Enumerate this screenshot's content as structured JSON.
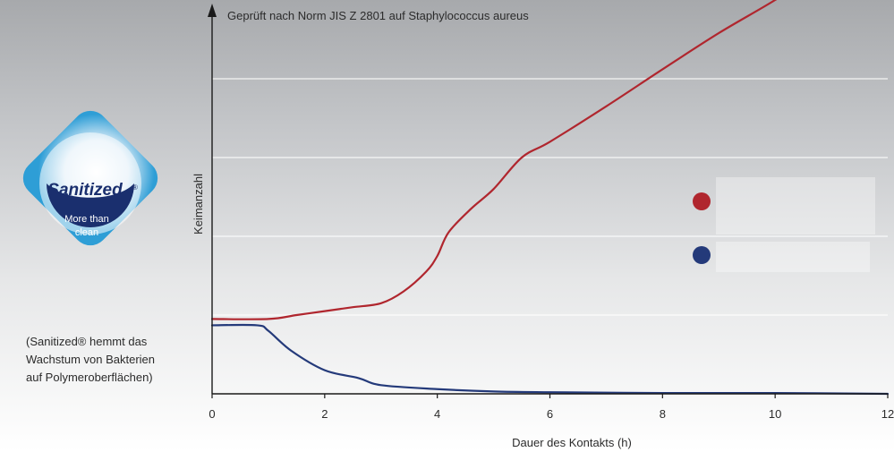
{
  "logo": {
    "name": "Sanitized",
    "mark": "®",
    "tagline_line1": "More than",
    "tagline_line2": "clean"
  },
  "caption": {
    "line1": "(Sanitized® hemmt das",
    "line2": "Wachstum von Bakterien",
    "line3": "auf Polymeroberflächen)"
  },
  "chart_data": {
    "type": "line",
    "title": "Geprüft nach Norm JIS Z 2801 auf Staphylococcus aureus",
    "xlabel": "Dauer des Kontakts (h)",
    "ylabel": "Keimanzahl",
    "xlim": [
      0,
      12
    ],
    "ylim": [
      0,
      5
    ],
    "x_ticks": [
      0,
      2,
      4,
      6,
      8,
      10,
      12
    ],
    "y_gridlines": [
      1,
      2,
      3,
      4
    ],
    "series": [
      {
        "color": "#b0262e",
        "points": [
          [
            0,
            0.95
          ],
          [
            1,
            0.95
          ],
          [
            1.5,
            1.0
          ],
          [
            2,
            1.05
          ],
          [
            2.5,
            1.1
          ],
          [
            3,
            1.15
          ],
          [
            3.4,
            1.3
          ],
          [
            3.8,
            1.55
          ],
          [
            4,
            1.75
          ],
          [
            4.2,
            2.05
          ],
          [
            4.6,
            2.35
          ],
          [
            5,
            2.6
          ],
          [
            5.5,
            3.0
          ],
          [
            6,
            3.2
          ],
          [
            7,
            3.65
          ],
          [
            8,
            4.12
          ],
          [
            9,
            4.58
          ],
          [
            10,
            5.0
          ],
          [
            10.6,
            5.3
          ]
        ]
      },
      {
        "color": "#243a7a",
        "points": [
          [
            0,
            0.87
          ],
          [
            0.8,
            0.87
          ],
          [
            1.0,
            0.8
          ],
          [
            1.4,
            0.55
          ],
          [
            2,
            0.3
          ],
          [
            2.6,
            0.2
          ],
          [
            3,
            0.11
          ],
          [
            4,
            0.06
          ],
          [
            5,
            0.03
          ],
          [
            6,
            0.02
          ],
          [
            8,
            0.01
          ],
          [
            10,
            0.01
          ],
          [
            12,
            0.0
          ]
        ]
      }
    ]
  }
}
